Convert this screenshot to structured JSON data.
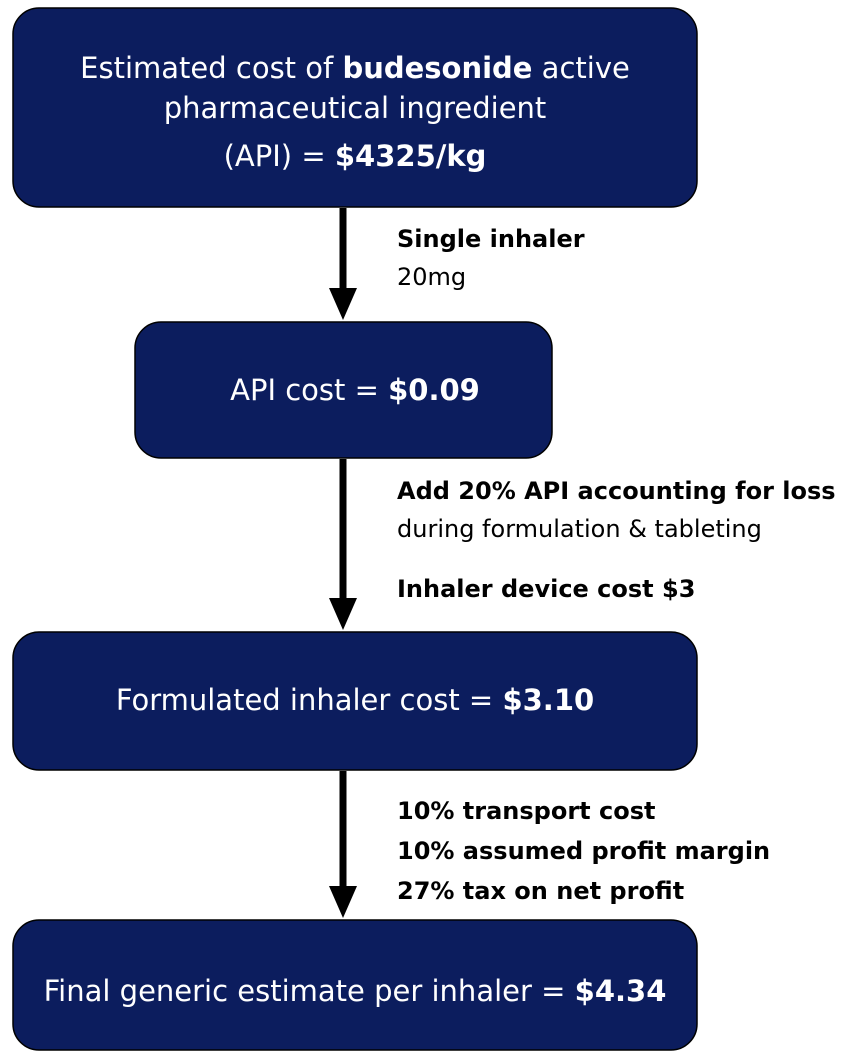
{
  "nodes": [
    {
      "lines": [
        [
          {
            "text": "Estimated cost of ",
            "bold": false
          },
          {
            "text": "budesonide",
            "bold": true
          },
          {
            "text": " active",
            "bold": false
          }
        ],
        [
          {
            "text": "pharmaceutical ingredient",
            "bold": false
          }
        ],
        [
          {
            "text": "(API) = ",
            "bold": false
          },
          {
            "text": "$4325/kg",
            "bold": true
          }
        ]
      ]
    },
    {
      "lines": [
        [
          {
            "text": "API cost = ",
            "bold": false
          },
          {
            "text": "$0.09",
            "bold": true
          }
        ]
      ]
    },
    {
      "lines": [
        [
          {
            "text": "Formulated inhaler cost = ",
            "bold": false
          },
          {
            "text": "$3.10",
            "bold": true
          }
        ]
      ]
    },
    {
      "lines": [
        [
          {
            "text": "Final generic estimate per inhaler = ",
            "bold": false
          },
          {
            "text": "$4.34",
            "bold": true
          }
        ]
      ]
    }
  ],
  "edges": [
    {
      "lines": [
        [
          {
            "text": "Single inhaler",
            "bold": true
          }
        ],
        [
          {
            "text": "20mg",
            "bold": false
          }
        ]
      ]
    },
    {
      "lines": [
        [
          {
            "text": "Add 20% API accounting for loss",
            "bold": true
          }
        ],
        [
          {
            "text": "during formulation & tableting",
            "bold": false
          }
        ],
        [
          {
            "text": "Inhaler device cost $3",
            "bold": true
          }
        ]
      ]
    },
    {
      "lines": [
        [
          {
            "text": "10% transport cost",
            "bold": true
          }
        ],
        [
          {
            "text": "10% assumed profit margin",
            "bold": true
          }
        ],
        [
          {
            "text": "27% tax on net profit",
            "bold": true
          }
        ]
      ]
    }
  ]
}
